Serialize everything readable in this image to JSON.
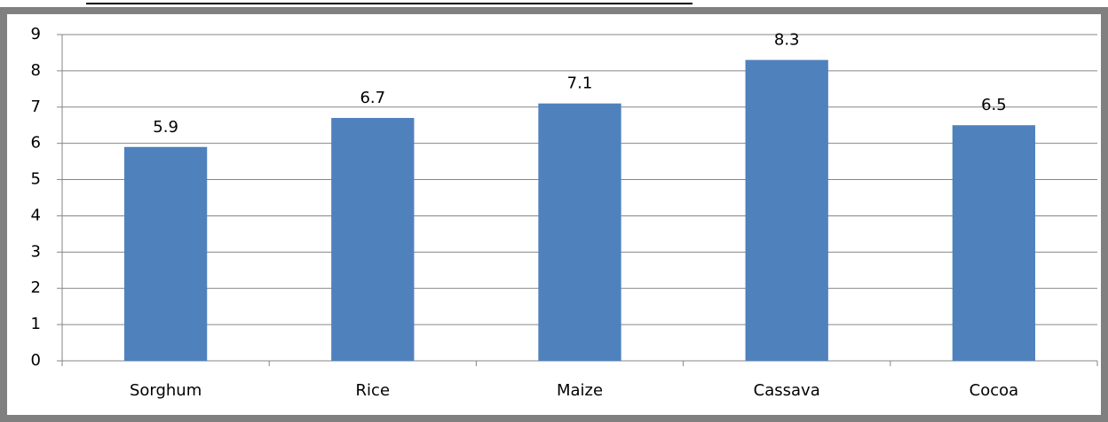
{
  "chart_data": {
    "type": "bar",
    "categories": [
      "Sorghum",
      "Rice",
      "Maize",
      "Cassava",
      "Cocoa"
    ],
    "values": [
      5.9,
      6.7,
      7.1,
      8.3,
      6.5
    ],
    "color": "#4f81bd",
    "ylim": [
      0,
      9
    ],
    "yticks": [
      0,
      1,
      2,
      3,
      4,
      5,
      6,
      7,
      8,
      9
    ],
    "grid": true
  }
}
